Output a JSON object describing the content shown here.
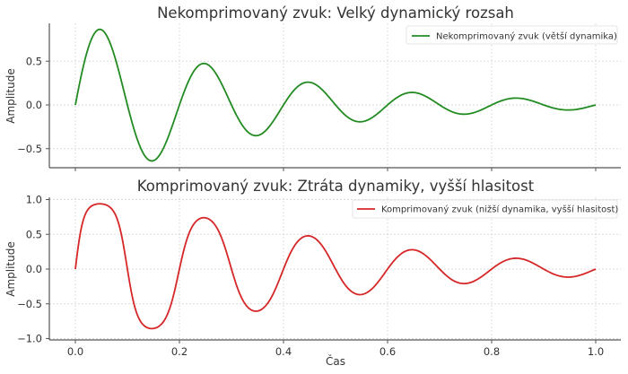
{
  "chart_data": [
    {
      "type": "line",
      "title": "Nekomprimovaný zvuk: Velký dynamický rozsah",
      "xlabel": "",
      "ylabel": "Amplitude",
      "xlim": [
        -0.05,
        1.05
      ],
      "ylim": [
        -0.72,
        0.93
      ],
      "yticks": [
        "−0.5",
        "0.0",
        "0.5"
      ],
      "ytick_values": [
        -0.5,
        0.0,
        0.5
      ],
      "xtick_values": [
        0.0,
        0.2,
        0.4,
        0.6,
        0.8,
        1.0
      ],
      "grid": true,
      "legend_position": "upper right",
      "series": [
        {
          "name": "Nekomprimovaný zvuk (větší dynamika)",
          "color": "#228b22",
          "formula": "sin(2*pi*5*t)*exp(-3*t)",
          "x": [
            0.0,
            0.05,
            0.1,
            0.15,
            0.2,
            0.25,
            0.3,
            0.35,
            0.4,
            0.45,
            0.5,
            0.55,
            0.6,
            0.65,
            0.7,
            0.75,
            0.8,
            0.85,
            0.9,
            0.95,
            1.0
          ],
          "values": [
            0.0,
            0.86,
            0.0,
            -0.64,
            0.0,
            0.47,
            0.0,
            -0.35,
            0.0,
            0.26,
            0.0,
            -0.19,
            0.0,
            0.14,
            0.0,
            -0.11,
            0.0,
            0.08,
            0.0,
            -0.06,
            0.0
          ]
        }
      ]
    },
    {
      "type": "line",
      "title": "Komprimovaný zvuk: Ztráta dynamiky, vyšší hlasitost",
      "xlabel": "Čas",
      "ylabel": "Amplitude",
      "xlim": [
        -0.05,
        1.05
      ],
      "ylim": [
        -1.0,
        1.05
      ],
      "yticks": [
        "−1.0",
        "−0.5",
        "0.0",
        "0.5",
        "1.0"
      ],
      "ytick_values": [
        -1.0,
        -0.5,
        0.0,
        0.5,
        1.0
      ],
      "xticks": [
        "0.0",
        "0.2",
        "0.4",
        "0.6",
        "0.8",
        "1.0"
      ],
      "xtick_values": [
        0.0,
        0.2,
        0.4,
        0.6,
        0.8,
        1.0
      ],
      "grid": true,
      "legend_position": "upper right",
      "series": [
        {
          "name": "Komprimovaný zvuk (nižší dynamika, vyšší hlasitost)",
          "color": "#d62728",
          "formula": "tanh(2*sin(2*pi*5*t)*exp(-3*t))",
          "x": [
            0.0,
            0.05,
            0.1,
            0.15,
            0.2,
            0.25,
            0.3,
            0.35,
            0.4,
            0.45,
            0.5,
            0.55,
            0.6,
            0.65,
            0.7,
            0.75,
            0.8,
            0.85,
            0.9,
            0.95,
            1.0
          ],
          "values": [
            0.0,
            0.97,
            0.0,
            -0.91,
            0.0,
            0.82,
            0.0,
            -0.71,
            0.0,
            0.57,
            0.0,
            -0.44,
            0.0,
            0.33,
            0.0,
            -0.25,
            0.0,
            0.19,
            0.0,
            -0.14,
            0.0
          ]
        }
      ]
    }
  ]
}
